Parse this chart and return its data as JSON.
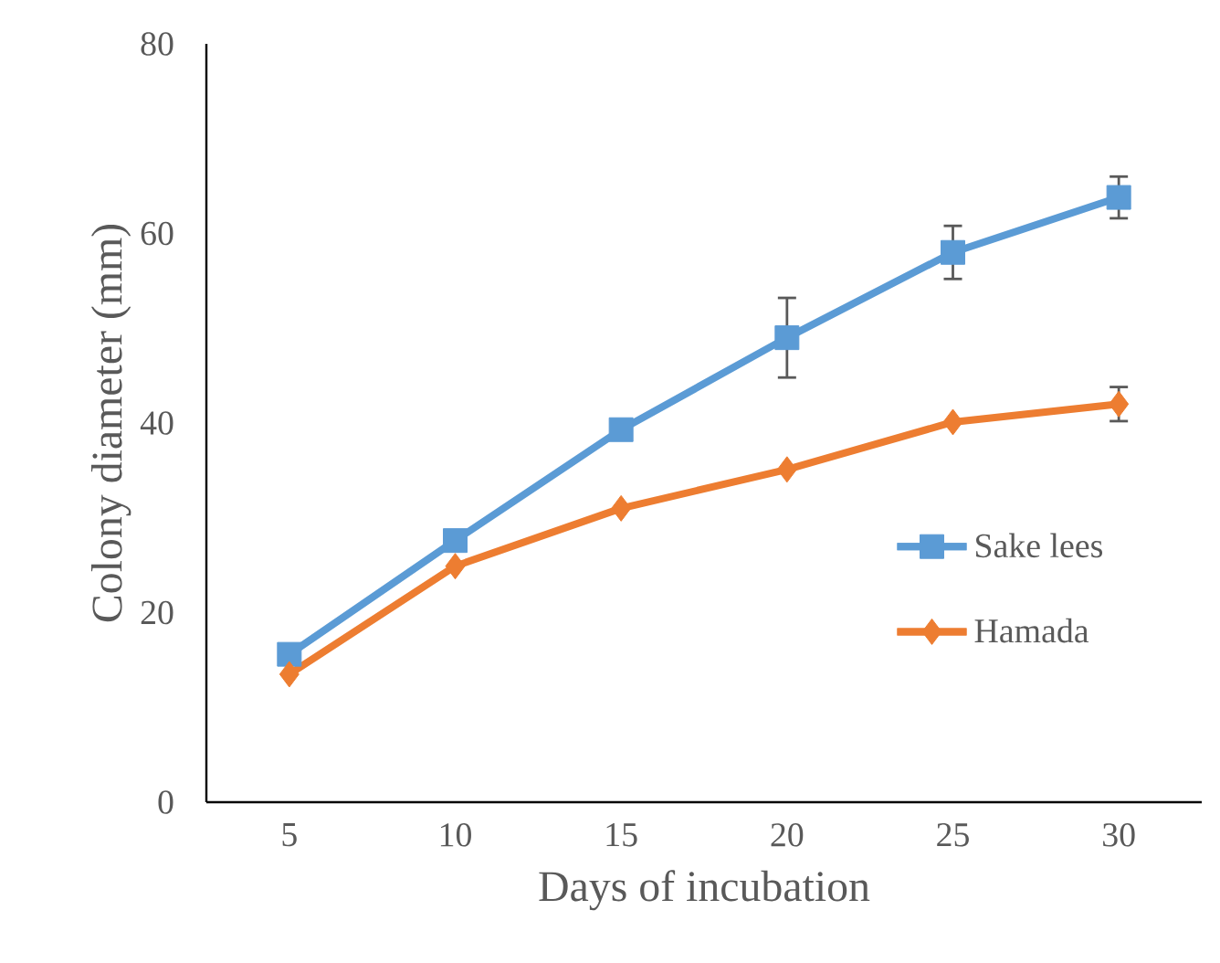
{
  "chart_data": {
    "type": "line",
    "xlabel": "Days of incubation",
    "ylabel": "Colony diameter (mm)",
    "categories": [
      "5",
      "10",
      "15",
      "20",
      "25",
      "30"
    ],
    "ylim": [
      0,
      80
    ],
    "yticks": [
      0,
      20,
      40,
      60,
      80
    ],
    "grid": false,
    "legend": "bottom right",
    "line_style": "solid",
    "series": [
      {
        "name": "Sake lees",
        "color": "#5b9bd5",
        "marker": "square",
        "values": [
          15.6,
          27.6,
          39.3,
          49.0,
          58.0,
          63.8
        ],
        "errors": [
          null,
          null,
          null,
          4.2,
          2.8,
          2.2
        ]
      },
      {
        "name": "Hamada",
        "color": "#ed7d31",
        "marker": "diamond",
        "values": [
          13.5,
          24.9,
          31.0,
          35.1,
          40.1,
          42.0
        ],
        "errors": [
          null,
          null,
          null,
          null,
          null,
          1.8
        ]
      }
    ]
  }
}
